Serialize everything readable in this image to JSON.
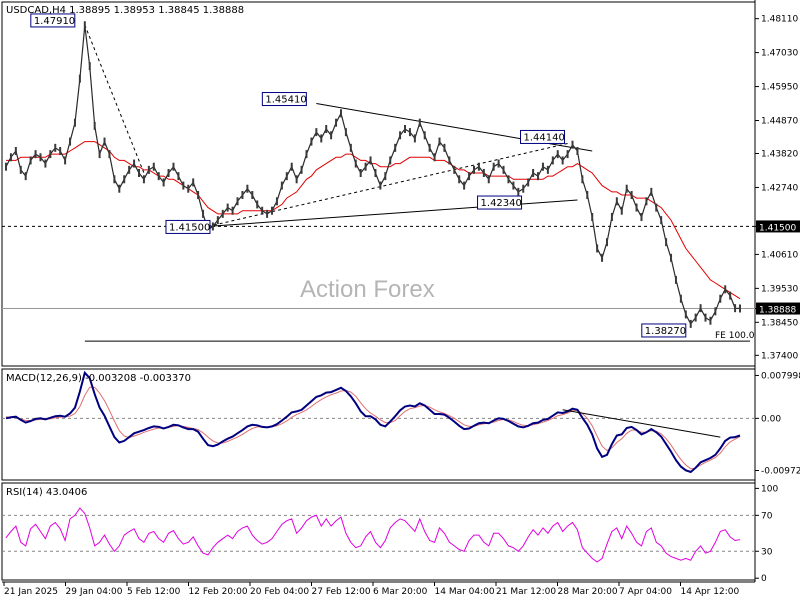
{
  "header": {
    "symbol": "USDCAD,H4",
    "ohlc": "1.38895 1.38953 1.38845 1.38888"
  },
  "watermark": "Action Forex",
  "colors": {
    "price": "#000000",
    "ma": "#e00000",
    "macd": "#000080",
    "signal": "#e07070",
    "rsi": "#e000e0",
    "level_box": "#000080",
    "grid": "#000000"
  },
  "chart_data": [
    {
      "type": "line",
      "panel": "price",
      "title": "USDCAD,H4",
      "ylim": [
        1.3706,
        1.4864
      ],
      "y_ticks": [
        "1.48110",
        "1.47030",
        "1.45950",
        "1.44870",
        "1.43820",
        "1.42740",
        "1.41500",
        "1.40610",
        "1.39530",
        "1.38888",
        "1.38450",
        "1.37400"
      ],
      "current_price": "1.38888",
      "reference_level": "1.41500",
      "annotations": [
        {
          "label": "1.47910",
          "value": 1.4791
        },
        {
          "label": "1.45410",
          "value": 1.4541
        },
        {
          "label": "1.44140",
          "value": 1.4414
        },
        {
          "label": "1.42340",
          "value": 1.4234
        },
        {
          "label": "1.41500",
          "value": 1.415
        },
        {
          "label": "1.38270",
          "value": 1.3827
        }
      ],
      "fe_label": "FE 100.0",
      "fe_level": 1.3785,
      "series": [
        {
          "values": [
            1.434,
            1.437,
            1.439,
            1.433,
            1.431,
            1.436,
            1.438,
            1.437,
            1.435,
            1.438,
            1.44,
            1.439,
            1.436,
            1.442,
            1.448,
            1.462,
            1.479,
            1.466,
            1.447,
            1.438,
            1.442,
            1.438,
            1.43,
            1.427,
            1.43,
            1.433,
            1.435,
            1.432,
            1.43,
            1.433,
            1.434,
            1.431,
            1.429,
            1.432,
            1.434,
            1.431,
            1.428,
            1.427,
            1.429,
            1.425,
            1.419,
            1.414,
            1.415,
            1.417,
            1.419,
            1.421,
            1.42,
            1.423,
            1.425,
            1.427,
            1.425,
            1.422,
            1.42,
            1.419,
            1.42,
            1.423,
            1.428,
            1.431,
            1.434,
            1.43,
            1.433,
            1.438,
            1.442,
            1.445,
            1.443,
            1.446,
            1.444,
            1.448,
            1.451,
            1.445,
            1.44,
            1.435,
            1.432,
            1.434,
            1.436,
            1.432,
            1.428,
            1.431,
            1.436,
            1.44,
            1.444,
            1.446,
            1.445,
            1.443,
            1.448,
            1.444,
            1.44,
            1.437,
            1.442,
            1.44,
            1.436,
            1.433,
            1.43,
            1.428,
            1.431,
            1.433,
            1.434,
            1.432,
            1.43,
            1.434,
            1.435,
            1.433,
            1.43,
            1.428,
            1.426,
            1.427,
            1.429,
            1.432,
            1.431,
            1.434,
            1.433,
            1.436,
            1.438,
            1.436,
            1.438,
            1.441,
            1.439,
            1.43,
            1.425,
            1.418,
            1.408,
            1.405,
            1.41,
            1.418,
            1.423,
            1.42,
            1.427,
            1.425,
            1.421,
            1.418,
            1.423,
            1.426,
            1.421,
            1.417,
            1.41,
            1.405,
            1.398,
            1.392,
            1.387,
            1.384,
            1.386,
            1.389,
            1.386,
            1.385,
            1.388,
            1.392,
            1.395,
            1.393,
            1.389,
            1.3889
          ]
        },
        {
          "values": [
            1.436,
            1.436,
            1.436,
            1.437,
            1.437,
            1.437,
            1.437,
            1.437,
            1.437,
            1.438,
            1.438,
            1.438,
            1.438,
            1.439,
            1.44,
            1.441,
            1.442,
            1.442,
            1.442,
            1.441,
            1.44,
            1.439,
            1.437,
            1.436,
            1.436,
            1.435,
            1.434,
            1.434,
            1.433,
            1.433,
            1.432,
            1.431,
            1.431,
            1.43,
            1.43,
            1.429,
            1.428,
            1.427,
            1.426,
            1.425,
            1.423,
            1.421,
            1.42,
            1.419,
            1.419,
            1.419,
            1.419,
            1.419,
            1.42,
            1.42,
            1.42,
            1.42,
            1.42,
            1.42,
            1.42,
            1.421,
            1.422,
            1.424,
            1.425,
            1.426,
            1.428,
            1.43,
            1.431,
            1.433,
            1.434,
            1.435,
            1.436,
            1.437,
            1.437,
            1.438,
            1.438,
            1.437,
            1.436,
            1.436,
            1.435,
            1.435,
            1.434,
            1.434,
            1.434,
            1.435,
            1.435,
            1.436,
            1.437,
            1.437,
            1.437,
            1.437,
            1.437,
            1.436,
            1.436,
            1.436,
            1.435,
            1.434,
            1.433,
            1.433,
            1.432,
            1.432,
            1.432,
            1.432,
            1.431,
            1.431,
            1.431,
            1.431,
            1.431,
            1.43,
            1.43,
            1.43,
            1.43,
            1.43,
            1.43,
            1.43,
            1.431,
            1.431,
            1.432,
            1.433,
            1.434,
            1.434,
            1.435,
            1.434,
            1.433,
            1.432,
            1.43,
            1.428,
            1.427,
            1.426,
            1.426,
            1.425,
            1.425,
            1.425,
            1.424,
            1.424,
            1.424,
            1.423,
            1.422,
            1.421,
            1.419,
            1.417,
            1.414,
            1.411,
            1.408,
            1.406,
            1.404,
            1.402,
            1.4,
            1.398,
            1.397,
            1.396,
            1.395,
            1.394,
            1.393,
            1.392
          ]
        }
      ]
    },
    {
      "type": "line",
      "panel": "macd",
      "title": "MACD(12,26,9) -0.003208 -0.003370",
      "ylim": [
        -0.0115,
        0.0092
      ],
      "y_ticks": [
        "0.007998",
        "0.00",
        "-0.009727"
      ],
      "series": [
        {
          "values": [
            0.0,
            0.0002,
            0.0003,
            -0.0003,
            -0.0008,
            -0.0005,
            -0.0001,
            0.0,
            -0.0002,
            0.0001,
            0.0004,
            0.0005,
            0.0003,
            0.0009,
            0.002,
            0.005,
            0.0085,
            0.0075,
            0.0045,
            0.002,
            0.0005,
            -0.0015,
            -0.0035,
            -0.0045,
            -0.0042,
            -0.0035,
            -0.0028,
            -0.0025,
            -0.0022,
            -0.0018,
            -0.0015,
            -0.0016,
            -0.0019,
            -0.0016,
            -0.0012,
            -0.0013,
            -0.0017,
            -0.002,
            -0.002,
            -0.0025,
            -0.0038,
            -0.005,
            -0.0052,
            -0.0049,
            -0.0043,
            -0.0038,
            -0.0034,
            -0.0028,
            -0.0022,
            -0.0015,
            -0.0012,
            -0.0013,
            -0.0016,
            -0.0017,
            -0.0015,
            -0.0011,
            -0.0004,
            0.0003,
            0.0011,
            0.0013,
            0.0016,
            0.0024,
            0.0032,
            0.004,
            0.0043,
            0.0048,
            0.0049,
            0.0053,
            0.0057,
            0.0051,
            0.0041,
            0.0028,
            0.0013,
            0.0004,
            0.0004,
            -0.0002,
            -0.0012,
            -0.0015,
            -0.0006,
            0.0004,
            0.0015,
            0.0022,
            0.0024,
            0.0022,
            0.0028,
            0.0024,
            0.0016,
            0.0008,
            0.0008,
            0.0007,
            0.0001,
            -0.0006,
            -0.0014,
            -0.002,
            -0.0019,
            -0.0014,
            -0.0009,
            -0.0008,
            -0.0009,
            -0.0004,
            0.0,
            -0.0001,
            -0.0005,
            -0.001,
            -0.0015,
            -0.0017,
            -0.0014,
            -0.0009,
            -0.0008,
            -0.0003,
            -0.0001,
            0.0005,
            0.0011,
            0.001,
            0.0013,
            0.0018,
            0.0016,
            0.0001,
            -0.0012,
            -0.003,
            -0.0056,
            -0.0072,
            -0.0068,
            -0.0048,
            -0.0032,
            -0.003,
            -0.0018,
            -0.0016,
            -0.0022,
            -0.003,
            -0.0026,
            -0.002,
            -0.0026,
            -0.0034,
            -0.0048,
            -0.0062,
            -0.0078,
            -0.009,
            -0.0097,
            -0.01,
            -0.0092,
            -0.0082,
            -0.0078,
            -0.0074,
            -0.0068,
            -0.0056,
            -0.0042,
            -0.0036,
            -0.0035,
            -0.0032
          ]
        },
        {
          "values": [
            0.0003,
            0.0002,
            0.0001,
            -0.0001,
            -0.0004,
            -0.0004,
            -0.0003,
            -0.0002,
            -0.0002,
            -0.0001,
            0.0001,
            0.0002,
            0.0003,
            0.0004,
            0.0009,
            0.0022,
            0.0043,
            0.0058,
            0.0058,
            0.0047,
            0.0033,
            0.0015,
            -0.0005,
            -0.0023,
            -0.0033,
            -0.0036,
            -0.0033,
            -0.003,
            -0.0026,
            -0.0023,
            -0.002,
            -0.0018,
            -0.0018,
            -0.0017,
            -0.0015,
            -0.0014,
            -0.0015,
            -0.0017,
            -0.0019,
            -0.0021,
            -0.0027,
            -0.0035,
            -0.0042,
            -0.0046,
            -0.0046,
            -0.0043,
            -0.0039,
            -0.0035,
            -0.003,
            -0.0024,
            -0.0019,
            -0.0016,
            -0.0016,
            -0.0016,
            -0.0016,
            -0.0014,
            -0.001,
            -0.0005,
            0.0002,
            0.0007,
            0.0011,
            0.0016,
            0.0022,
            0.0029,
            0.0035,
            0.004,
            0.0044,
            0.0047,
            0.0051,
            0.0052,
            0.0049,
            0.0041,
            0.0029,
            0.0018,
            0.001,
            0.0004,
            -0.0003,
            -0.0008,
            -0.0008,
            -0.0004,
            0.0005,
            0.0013,
            0.0018,
            0.002,
            0.0023,
            0.0024,
            0.0021,
            0.0016,
            0.0012,
            0.0009,
            0.0005,
            0.0,
            -0.0006,
            -0.0012,
            -0.0015,
            -0.0015,
            -0.0012,
            -0.001,
            -0.0009,
            -0.0007,
            -0.0004,
            -0.0002,
            -0.0003,
            -0.0006,
            -0.001,
            -0.0013,
            -0.0014,
            -0.0012,
            -0.001,
            -0.0007,
            -0.0004,
            0.0,
            0.0005,
            0.0007,
            0.001,
            0.0014,
            0.0015,
            0.0009,
            0.0,
            -0.0014,
            -0.0033,
            -0.0052,
            -0.006,
            -0.0055,
            -0.0045,
            -0.0038,
            -0.0028,
            -0.0022,
            -0.0022,
            -0.0026,
            -0.0026,
            -0.0023,
            -0.0024,
            -0.0029,
            -0.0038,
            -0.005,
            -0.0064,
            -0.0077,
            -0.0087,
            -0.0094,
            -0.0093,
            -0.0087,
            -0.0082,
            -0.0078,
            -0.0073,
            -0.0065,
            -0.0053,
            -0.0044,
            -0.0039,
            -0.0034
          ]
        }
      ]
    },
    {
      "type": "line",
      "panel": "rsi",
      "title": "RSI(14) 43.0406",
      "ylim": [
        -2,
        106
      ],
      "y_ticks": [
        "100",
        "70",
        "30",
        "0"
      ],
      "series": [
        {
          "values": [
            45,
            52,
            58,
            40,
            36,
            55,
            60,
            52,
            44,
            58,
            62,
            55,
            42,
            66,
            70,
            78,
            72,
            56,
            36,
            40,
            48,
            38,
            30,
            36,
            48,
            52,
            55,
            44,
            40,
            50,
            52,
            44,
            40,
            50,
            53,
            44,
            38,
            40,
            46,
            36,
            28,
            26,
            34,
            40,
            44,
            48,
            44,
            52,
            56,
            58,
            48,
            42,
            38,
            40,
            44,
            52,
            60,
            64,
            66,
            50,
            56,
            64,
            68,
            70,
            58,
            66,
            58,
            64,
            68,
            50,
            40,
            34,
            36,
            46,
            52,
            40,
            34,
            42,
            56,
            62,
            66,
            64,
            58,
            52,
            66,
            52,
            42,
            40,
            56,
            50,
            40,
            36,
            32,
            30,
            42,
            48,
            48,
            40,
            36,
            50,
            50,
            44,
            36,
            34,
            30,
            36,
            46,
            54,
            48,
            56,
            50,
            58,
            62,
            52,
            58,
            62,
            54,
            34,
            28,
            22,
            18,
            22,
            38,
            52,
            56,
            44,
            58,
            50,
            40,
            36,
            52,
            56,
            40,
            36,
            28,
            24,
            22,
            20,
            22,
            20,
            30,
            36,
            28,
            30,
            40,
            52,
            54,
            46,
            42,
            43
          ]
        }
      ]
    }
  ],
  "x_axis": {
    "labels": [
      "21 Jan 2025",
      "29 Jan 04:00",
      "5 Feb 12:00",
      "12 Feb 20:00",
      "20 Feb 04:00",
      "27 Feb 12:00",
      "6 Mar 20:00",
      "14 Mar 04:00",
      "21 Mar 12:00",
      "28 Mar 20:00",
      "7 Apr 04:00",
      "14 Apr 12:00"
    ]
  }
}
